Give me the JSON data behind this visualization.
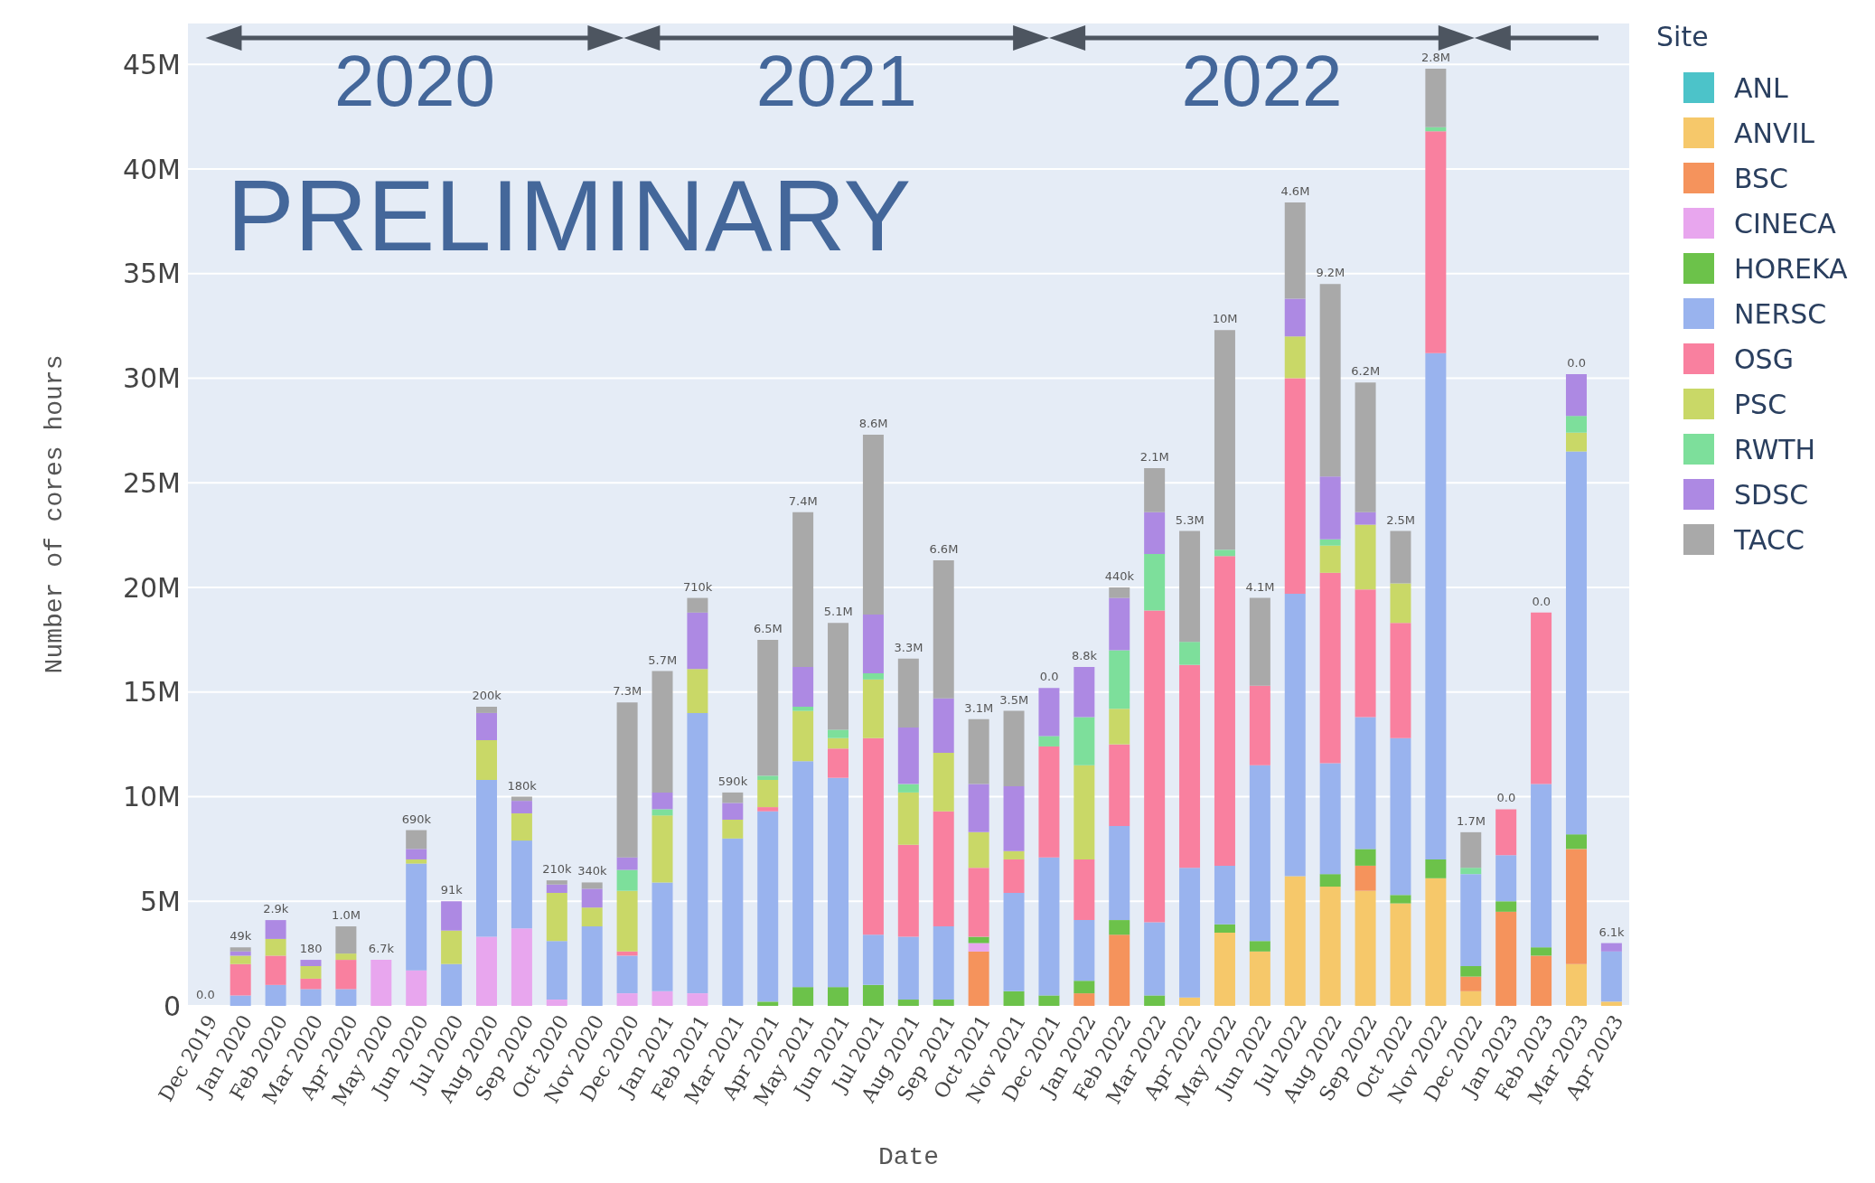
{
  "chart_data": {
    "type": "bar",
    "stacked": true,
    "xlabel": "Date",
    "ylabel": "Number of cores hours",
    "legend_title": "Site",
    "legend": "top right",
    "grid": "y",
    "categories": [
      "Dec 2019",
      "Jan 2020",
      "Feb 2020",
      "Mar 2020",
      "Apr 2020",
      "May 2020",
      "Jun 2020",
      "Jul 2020",
      "Aug 2020",
      "Sep 2020",
      "Oct 2020",
      "Nov 2020",
      "Dec 2020",
      "Jan 2021",
      "Feb 2021",
      "Mar 2021",
      "Apr 2021",
      "May 2021",
      "Jun 2021",
      "Jul 2021",
      "Aug 2021",
      "Sep 2021",
      "Oct 2021",
      "Nov 2021",
      "Dec 2021",
      "Jan 2022",
      "Feb 2022",
      "Mar 2022",
      "Apr 2022",
      "May 2022",
      "Jun 2022",
      "Jul 2022",
      "Aug 2022",
      "Sep 2022",
      "Oct 2022",
      "Nov 2022",
      "Dec 2022",
      "Jan 2023",
      "Feb 2023",
      "Mar 2023",
      "Apr 2023"
    ],
    "ylim": [
      0,
      47
    ],
    "yticks": [
      0,
      {
        "value": 5,
        "label": "5M"
      },
      {
        "value": 10,
        "label": "10M"
      },
      {
        "value": 15,
        "label": "15M"
      },
      {
        "value": 20,
        "label": "20M"
      },
      {
        "value": 25,
        "label": "25M"
      },
      {
        "value": 30,
        "label": "30M"
      },
      {
        "value": 35,
        "label": "35M"
      },
      {
        "value": 40,
        "label": "40M"
      },
      {
        "value": 45,
        "label": "45M"
      }
    ],
    "series": [
      {
        "name": "ANL",
        "color": "#4cc3c9",
        "values": [
          0,
          0,
          0,
          0,
          0,
          0,
          0,
          0,
          0,
          0,
          0,
          0,
          0,
          0,
          0,
          0,
          0,
          0,
          0,
          0,
          0,
          0,
          0,
          0,
          0,
          0,
          0,
          0,
          0,
          0,
          0,
          0,
          0,
          0,
          0,
          0,
          0,
          0,
          0,
          0,
          0
        ]
      },
      {
        "name": "ANVIL",
        "color": "#f6c86a",
        "values": [
          0,
          0,
          0,
          0,
          0,
          0,
          0,
          0,
          0,
          0,
          0,
          0,
          0,
          0,
          0,
          0,
          0,
          0,
          0,
          0,
          0,
          0,
          0,
          0,
          0,
          0,
          0,
          0,
          0.4,
          3.5,
          2.6,
          6.2,
          5.7,
          5.5,
          4.9,
          6.1,
          0.7,
          0,
          0,
          2.0,
          0.2
        ]
      },
      {
        "name": "BSC",
        "color": "#f5935c",
        "values": [
          0,
          0,
          0,
          0,
          0,
          0,
          0,
          0,
          0,
          0,
          0,
          0,
          0,
          0,
          0,
          0,
          0,
          0,
          0,
          0,
          0,
          0,
          2.6,
          0,
          0,
          0.6,
          3.4,
          0,
          0,
          0,
          0,
          0,
          0,
          1.2,
          0,
          0,
          0.7,
          4.5,
          2.4,
          5.5,
          0
        ]
      },
      {
        "name": "CINECA",
        "color": "#e8a6ee",
        "values": [
          0,
          0,
          0,
          0,
          0,
          2.2,
          1.7,
          0,
          3.3,
          3.7,
          0.3,
          0,
          0.6,
          0.7,
          0.6,
          0,
          0,
          0,
          0,
          0,
          0,
          0,
          0.4,
          0,
          0,
          0,
          0,
          0,
          0,
          0,
          0,
          0,
          0,
          0,
          0,
          0,
          0,
          0,
          0,
          0,
          0
        ]
      },
      {
        "name": "HOREKA",
        "color": "#6cc24a",
        "values": [
          0,
          0,
          0,
          0,
          0,
          0,
          0,
          0,
          0,
          0,
          0,
          0,
          0,
          0,
          0,
          0,
          0.2,
          0.9,
          0.9,
          1.0,
          0.3,
          0.3,
          0.3,
          0.7,
          0.5,
          0.6,
          0.7,
          0.5,
          0,
          0.4,
          0.5,
          0,
          0.6,
          0.8,
          0.4,
          0.9,
          0.5,
          0.5,
          0.4,
          0.7,
          0
        ]
      },
      {
        "name": "NERSC",
        "color": "#99b3ee",
        "values": [
          0,
          0.5,
          1.0,
          0.8,
          0.8,
          0,
          5.1,
          2.0,
          7.5,
          4.2,
          2.8,
          3.8,
          1.8,
          5.2,
          13.4,
          8.0,
          9.1,
          10.8,
          10.0,
          2.4,
          3.0,
          3.5,
          0,
          4.7,
          6.6,
          2.9,
          4.5,
          3.5,
          6.2,
          2.8,
          8.4,
          13.5,
          5.3,
          6.3,
          7.5,
          24.2,
          4.4,
          2.2,
          7.8,
          18.3,
          2.4
        ]
      },
      {
        "name": "OSG",
        "color": "#f9809f",
        "values": [
          0,
          1.5,
          1.4,
          0.5,
          1.4,
          0,
          0,
          0,
          0,
          0,
          0,
          0,
          0.2,
          0,
          0,
          0,
          0.2,
          0,
          1.4,
          9.4,
          4.4,
          5.5,
          3.3,
          1.6,
          5.3,
          2.9,
          3.9,
          14.9,
          9.7,
          14.8,
          3.8,
          10.3,
          9.1,
          6.1,
          5.5,
          10.6,
          0,
          2.2,
          8.2,
          0,
          0
        ]
      },
      {
        "name": "PSC",
        "color": "#c9d867",
        "values": [
          0,
          0.4,
          0.8,
          0.6,
          0.3,
          0,
          0.2,
          1.6,
          1.9,
          1.3,
          2.3,
          0.9,
          2.9,
          3.2,
          2.1,
          0.9,
          1.3,
          2.4,
          0.5,
          2.8,
          2.5,
          2.8,
          1.7,
          0.4,
          0,
          4.5,
          1.7,
          0,
          0,
          0,
          0,
          2.0,
          1.3,
          3.1,
          1.9,
          0,
          0,
          0,
          0,
          0.9,
          0
        ]
      },
      {
        "name": "RWTH",
        "color": "#7ddf9b",
        "values": [
          0,
          0,
          0,
          0,
          0,
          0,
          0,
          0,
          0,
          0,
          0,
          0,
          1.0,
          0.3,
          0,
          0,
          0.2,
          0.2,
          0.4,
          0.3,
          0.4,
          0,
          0,
          0,
          0.5,
          2.3,
          2.8,
          2.7,
          1.1,
          0.3,
          0,
          0,
          0.3,
          0,
          0,
          0.2,
          0.3,
          0,
          0,
          0.8,
          0
        ]
      },
      {
        "name": "SDSC",
        "color": "#ad89e3",
        "values": [
          0,
          0.2,
          0.9,
          0.3,
          0,
          0,
          0.5,
          1.4,
          1.3,
          0.6,
          0.4,
          0.9,
          0.6,
          0.8,
          2.7,
          0.8,
          0,
          1.9,
          0,
          2.8,
          2.7,
          2.6,
          2.3,
          3.1,
          2.3,
          2.4,
          2.5,
          2.0,
          0,
          0,
          0,
          1.8,
          3.0,
          0.6,
          0,
          0,
          0,
          0,
          0,
          2.0,
          0.4
        ]
      },
      {
        "name": "TACC",
        "color": "#a9a9a9",
        "values": [
          0,
          0.2,
          0,
          0,
          1.3,
          0,
          0.9,
          0,
          0.3,
          0.2,
          0.2,
          0.3,
          7.4,
          5.8,
          0.7,
          0.5,
          6.5,
          7.4,
          5.1,
          8.6,
          3.3,
          6.6,
          3.1,
          3.6,
          0,
          0,
          0.5,
          2.1,
          5.3,
          10.5,
          4.2,
          4.6,
          9.2,
          6.2,
          2.5,
          2.8,
          1.7,
          0,
          0,
          0,
          0
        ]
      }
    ],
    "annotations": [
      "2020",
      "2021",
      "2022",
      "PRELIMINARY",
      {
        "text": "0.0",
        "x": "Dec 2019",
        "y": 0
      },
      {
        "text": "49k",
        "x": "Jan 2020",
        "y": 2.8
      },
      {
        "text": "2.9k",
        "x": "Feb 2020",
        "y": 4.1
      },
      {
        "text": "180",
        "x": "Mar 2020",
        "y": 2.2
      },
      {
        "text": "1.0M",
        "x": "Apr 2020",
        "y": 3.8
      },
      {
        "text": "6.7k",
        "x": "May 2020",
        "y": 2.2
      },
      {
        "text": "690k",
        "x": "Jun 2020",
        "y": 8.4
      },
      {
        "text": "91k",
        "x": "Jul 2020",
        "y": 5.0
      },
      {
        "text": "200k",
        "x": "Aug 2020",
        "y": 14.3
      },
      {
        "text": "180k",
        "x": "Sep 2020",
        "y": 10.0
      },
      {
        "text": "210k",
        "x": "Oct 2020",
        "y": 6.0
      },
      {
        "text": "340k",
        "x": "Nov 2020",
        "y": 5.9
      },
      {
        "text": "7.3M",
        "x": "Dec 2020",
        "y": 14.5
      },
      {
        "text": "5.7M",
        "x": "Jan 2021",
        "y": 16.0
      },
      {
        "text": "710k",
        "x": "Feb 2021",
        "y": 19.5
      },
      {
        "text": "590k",
        "x": "Mar 2021",
        "y": 10.2
      },
      {
        "text": "6.5M",
        "x": "Apr 2021",
        "y": 17.5
      },
      {
        "text": "7.4M",
        "x": "May 2021",
        "y": 23.6
      },
      {
        "text": "5.1M",
        "x": "Jun 2021",
        "y": 18.3
      },
      {
        "text": "8.6M",
        "x": "Jul 2021",
        "y": 27.3
      },
      {
        "text": "3.3M",
        "x": "Aug 2021",
        "y": 16.6
      },
      {
        "text": "6.6M",
        "x": "Sep 2021",
        "y": 21.3
      },
      {
        "text": "3.1M",
        "x": "Oct 2021",
        "y": 13.7
      },
      {
        "text": "3.5M",
        "x": "Nov 2021",
        "y": 14.1
      },
      {
        "text": "0.0",
        "x": "Dec 2021",
        "y": 15.2
      },
      {
        "text": "8.8k",
        "x": "Jan 2022",
        "y": 16.2
      },
      {
        "text": "440k",
        "x": "Feb 2022",
        "y": 20.0
      },
      {
        "text": "2.1M",
        "x": "Mar 2022",
        "y": 25.7
      },
      {
        "text": "5.3M",
        "x": "Apr 2022",
        "y": 22.7
      },
      {
        "text": "10M",
        "x": "May 2022",
        "y": 32.3
      },
      {
        "text": "4.1M",
        "x": "Jun 2022",
        "y": 19.5
      },
      {
        "text": "4.6M",
        "x": "Jul 2022",
        "y": 38.4
      },
      {
        "text": "9.2M",
        "x": "Aug 2022",
        "y": 34.5
      },
      {
        "text": "6.2M",
        "x": "Sep 2022",
        "y": 29.8
      },
      {
        "text": "2.5M",
        "x": "Oct 2022",
        "y": 22.7
      },
      {
        "text": "2.8M",
        "x": "Nov 2022",
        "y": 44.8
      },
      {
        "text": "1.7M",
        "x": "Dec 2022",
        "y": 8.3
      },
      {
        "text": "0.0",
        "x": "Jan 2023",
        "y": 9.4
      },
      {
        "text": "0.0",
        "x": "Feb 2023",
        "y": 18.8
      },
      {
        "text": "0.0",
        "x": "Mar 2023",
        "y": 30.2
      },
      {
        "text": "6.1k",
        "x": "Apr 2023",
        "y": 3.0
      }
    ]
  }
}
